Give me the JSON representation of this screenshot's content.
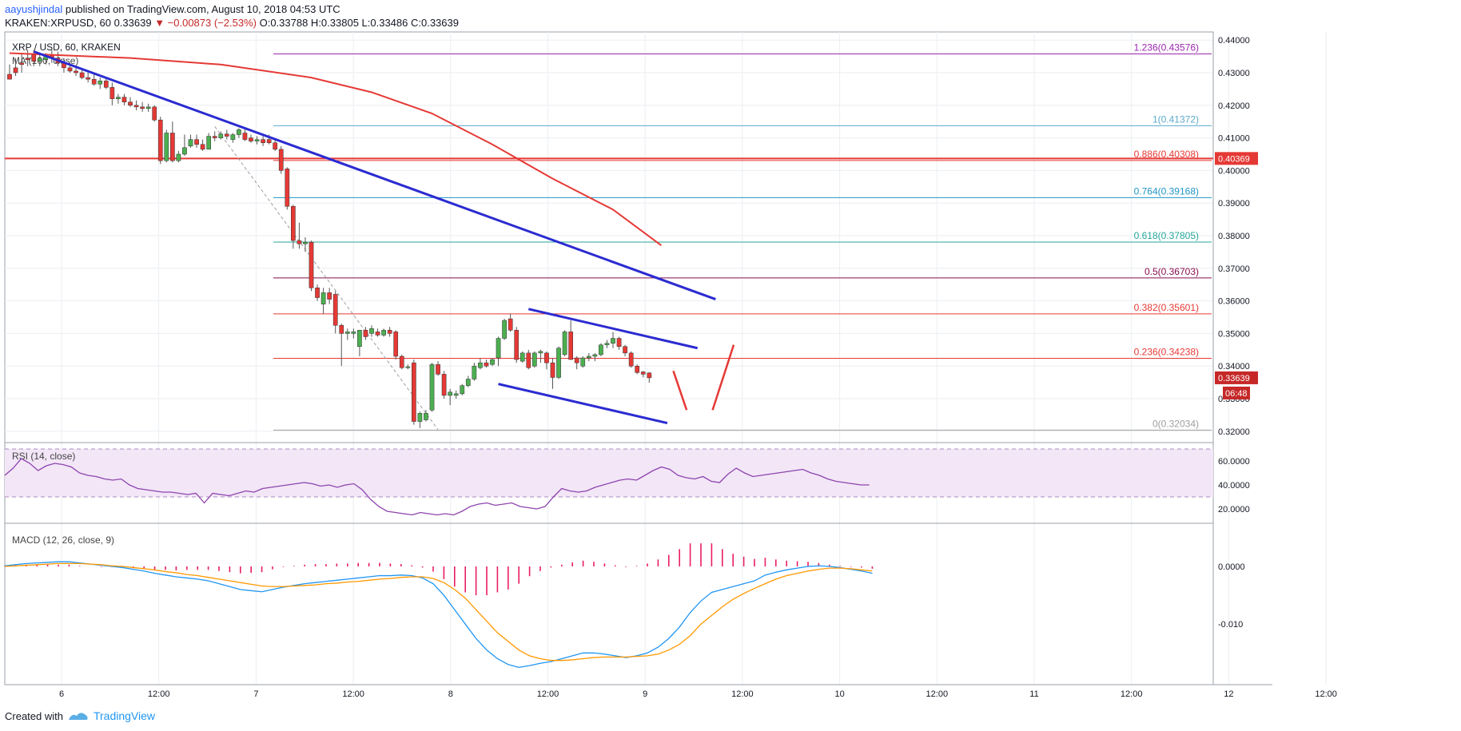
{
  "header": {
    "author": "aayushjindal",
    "published_text": "published on TradingView.com, August 10, 2018 04:53 UTC",
    "symbol": "KRAKEN:XRPUSD, 60",
    "last": "0.33639",
    "change": "▼ −0.00873 (−2.53%)",
    "ohlc": "O:0.33788 H:0.33805 L:0.33486 C:0.33639"
  },
  "legend": {
    "title": "XRP / USD, 60, KRAKEN",
    "ma": "MA (100, close)",
    "rsi": "RSI (14, close)",
    "macd": "MACD (12, 26, close, 9)"
  },
  "footer": {
    "created_with": "Created with",
    "brand": "TradingView"
  },
  "colors": {
    "up": "#4caf50",
    "down": "#e53935",
    "ma": "#e53935",
    "trend": "#2b2bd1",
    "rsi": "#8e44ad",
    "macd": "#2196f3",
    "signal": "#ff9800",
    "hist": "#e91e63"
  },
  "chart_data": [
    {
      "type": "candlestick",
      "title": "XRP / USD, 60, KRAKEN",
      "ylim": [
        0.3175,
        0.4425
      ],
      "y_ticks": [
        "0.44000",
        "0.43000",
        "0.42000",
        "0.41000",
        "0.40000",
        "0.39000",
        "0.38000",
        "0.37000",
        "0.36000",
        "0.35000",
        "0.34000",
        "0.33000",
        "0.32000"
      ],
      "x_ticks": [
        "6",
        "12:00",
        "7",
        "12:00",
        "8",
        "12:00",
        "9",
        "12:00",
        "10",
        "12:00",
        "11",
        "12:00",
        "12",
        "12:00"
      ],
      "price_labels": {
        "horizontal_line": "0.40369",
        "last": "0.33639",
        "countdown": "06:48"
      },
      "fib_levels": [
        {
          "label": "1.236(0.43576)",
          "value": 0.43576,
          "color": "#9c27b0"
        },
        {
          "label": "1(0.41372)",
          "value": 0.41372,
          "color": "#5aaacb"
        },
        {
          "label": "0.886(0.40308)",
          "value": 0.40308,
          "color": "#e53935"
        },
        {
          "label": "0.764(0.39168)",
          "value": 0.39168,
          "color": "#2196c8"
        },
        {
          "label": "0.618(0.37805)",
          "value": 0.37805,
          "color": "#26a69a"
        },
        {
          "label": "0.5(0.36703)",
          "value": 0.36703,
          "color": "#880e4f"
        },
        {
          "label": "0.382(0.35601)",
          "value": 0.35601,
          "color": "#e53935"
        },
        {
          "label": "0.236(0.34238)",
          "value": 0.34238,
          "color": "#e53935"
        },
        {
          "label": "0(0.32034)",
          "value": 0.32034,
          "color": "#9e9e9e"
        }
      ],
      "horizontal_line": 0.40369,
      "candles": [
        [
          0.4295,
          0.4325,
          0.429,
          0.428
        ],
        [
          0.4315,
          0.4345,
          0.429,
          0.43
        ],
        [
          0.433,
          0.436,
          0.43,
          0.4325
        ],
        [
          0.4345,
          0.437,
          0.432,
          0.434
        ],
        [
          0.4355,
          0.437,
          0.432,
          0.4335
        ],
        [
          0.4335,
          0.4355,
          0.432,
          0.4345
        ],
        [
          0.434,
          0.436,
          0.4325,
          0.435
        ],
        [
          0.4355,
          0.437,
          0.433,
          0.4345
        ],
        [
          0.4345,
          0.4365,
          0.432,
          0.433
        ],
        [
          0.433,
          0.4345,
          0.43,
          0.4315
        ],
        [
          0.4315,
          0.433,
          0.43,
          0.4305
        ],
        [
          0.4305,
          0.432,
          0.429,
          0.43
        ],
        [
          0.43,
          0.431,
          0.428,
          0.4285
        ],
        [
          0.4285,
          0.43,
          0.427,
          0.428
        ],
        [
          0.428,
          0.4295,
          0.426,
          0.4265
        ],
        [
          0.4265,
          0.4285,
          0.425,
          0.4275
        ],
        [
          0.4275,
          0.4285,
          0.425,
          0.4255
        ],
        [
          0.4255,
          0.427,
          0.42,
          0.422
        ],
        [
          0.422,
          0.4235,
          0.4205,
          0.4225
        ],
        [
          0.4225,
          0.4235,
          0.42,
          0.421
        ],
        [
          0.421,
          0.4225,
          0.4195,
          0.42
        ],
        [
          0.42,
          0.4215,
          0.4185,
          0.4195
        ],
        [
          0.4195,
          0.421,
          0.418,
          0.419
        ],
        [
          0.419,
          0.4205,
          0.418,
          0.4195
        ],
        [
          0.4195,
          0.42,
          0.415,
          0.4155
        ],
        [
          0.4155,
          0.4165,
          0.402,
          0.403
        ],
        [
          0.403,
          0.4125,
          0.4025,
          0.4115
        ],
        [
          0.4115,
          0.415,
          0.4025,
          0.403
        ],
        [
          0.403,
          0.406,
          0.4025,
          0.405
        ],
        [
          0.405,
          0.411,
          0.4045,
          0.407
        ],
        [
          0.4075,
          0.411,
          0.407,
          0.4095
        ],
        [
          0.4095,
          0.411,
          0.407,
          0.408
        ],
        [
          0.408,
          0.4095,
          0.406,
          0.4065
        ],
        [
          0.4065,
          0.4115,
          0.4065,
          0.4105
        ],
        [
          0.4105,
          0.412,
          0.409,
          0.41
        ],
        [
          0.41,
          0.412,
          0.4095,
          0.4112
        ],
        [
          0.4112,
          0.4125,
          0.4095,
          0.4105
        ],
        [
          0.4095,
          0.4115,
          0.4085,
          0.411
        ],
        [
          0.411,
          0.413,
          0.41,
          0.4125
        ],
        [
          0.4115,
          0.413,
          0.409,
          0.4095
        ],
        [
          0.41,
          0.411,
          0.4085,
          0.409
        ],
        [
          0.409,
          0.4105,
          0.408,
          0.4095
        ],
        [
          0.4095,
          0.4105,
          0.4075,
          0.4085
        ],
        [
          0.4095,
          0.411,
          0.408,
          0.4085
        ],
        [
          0.4085,
          0.4095,
          0.406,
          0.4065
        ],
        [
          0.4065,
          0.4075,
          0.399,
          0.4
        ],
        [
          0.4005,
          0.401,
          0.388,
          0.389
        ],
        [
          0.389,
          0.3895,
          0.376,
          0.3785
        ],
        [
          0.3785,
          0.384,
          0.376,
          0.3775
        ],
        [
          0.3775,
          0.3795,
          0.375,
          0.378
        ],
        [
          0.378,
          0.3785,
          0.363,
          0.364
        ],
        [
          0.364,
          0.365,
          0.36,
          0.361
        ],
        [
          0.359,
          0.364,
          0.356,
          0.3625
        ],
        [
          0.3625,
          0.364,
          0.359,
          0.3605
        ],
        [
          0.362,
          0.363,
          0.35,
          0.3525
        ],
        [
          0.3525,
          0.353,
          0.34,
          0.35
        ],
        [
          0.35,
          0.3515,
          0.348,
          0.3505
        ],
        [
          0.35,
          0.3515,
          0.3485,
          0.3505
        ],
        [
          0.346,
          0.351,
          0.343,
          0.351
        ],
        [
          0.351,
          0.352,
          0.348,
          0.349
        ],
        [
          0.35,
          0.3525,
          0.349,
          0.3515
        ],
        [
          0.3505,
          0.3515,
          0.349,
          0.3495
        ],
        [
          0.3495,
          0.3515,
          0.349,
          0.351
        ],
        [
          0.351,
          0.352,
          0.349,
          0.35
        ],
        [
          0.3505,
          0.351,
          0.342,
          0.343
        ],
        [
          0.343,
          0.3435,
          0.339,
          0.3395
        ],
        [
          0.3395,
          0.3405,
          0.339,
          0.3398
        ],
        [
          0.341,
          0.342,
          0.322,
          0.323
        ],
        [
          0.323,
          0.326,
          0.321,
          0.3255
        ],
        [
          0.3235,
          0.3265,
          0.323,
          0.3255
        ],
        [
          0.3265,
          0.341,
          0.326,
          0.3405
        ],
        [
          0.3405,
          0.3415,
          0.337,
          0.3375
        ],
        [
          0.3375,
          0.3385,
          0.33,
          0.331
        ],
        [
          0.331,
          0.333,
          0.328,
          0.332
        ],
        [
          0.331,
          0.3325,
          0.33,
          0.3315
        ],
        [
          0.3315,
          0.3345,
          0.331,
          0.334
        ],
        [
          0.334,
          0.337,
          0.3335,
          0.336
        ],
        [
          0.336,
          0.341,
          0.3355,
          0.34
        ],
        [
          0.3395,
          0.3425,
          0.339,
          0.341
        ],
        [
          0.341,
          0.342,
          0.3395,
          0.34
        ],
        [
          0.3405,
          0.3425,
          0.34,
          0.342
        ],
        [
          0.3425,
          0.349,
          0.34,
          0.3485
        ],
        [
          0.3485,
          0.3545,
          0.348,
          0.354
        ],
        [
          0.3545,
          0.356,
          0.3505,
          0.351
        ],
        [
          0.351,
          0.352,
          0.341,
          0.342
        ],
        [
          0.3415,
          0.3445,
          0.341,
          0.344
        ],
        [
          0.344,
          0.345,
          0.339,
          0.3395
        ],
        [
          0.34,
          0.3445,
          0.3395,
          0.344
        ],
        [
          0.344,
          0.345,
          0.341,
          0.3445
        ],
        [
          0.344,
          0.3445,
          0.339,
          0.341
        ],
        [
          0.341,
          0.3425,
          0.333,
          0.3365
        ],
        [
          0.3365,
          0.346,
          0.336,
          0.3455
        ],
        [
          0.3435,
          0.351,
          0.343,
          0.3505
        ],
        [
          0.3505,
          0.354,
          0.342,
          0.342
        ],
        [
          0.3425,
          0.343,
          0.339,
          0.341
        ],
        [
          0.34,
          0.343,
          0.3395,
          0.3425
        ],
        [
          0.3425,
          0.344,
          0.3415,
          0.343
        ],
        [
          0.343,
          0.344,
          0.3415,
          0.3435
        ],
        [
          0.3435,
          0.347,
          0.343,
          0.3465
        ],
        [
          0.3465,
          0.348,
          0.3455,
          0.347
        ],
        [
          0.347,
          0.3505,
          0.3455,
          0.3485
        ],
        [
          0.3485,
          0.349,
          0.345,
          0.346
        ],
        [
          0.346,
          0.3465,
          0.343,
          0.344
        ],
        [
          0.344,
          0.3445,
          0.3395,
          0.34
        ],
        [
          0.34,
          0.3405,
          0.3375,
          0.338
        ],
        [
          0.3382,
          0.3385,
          0.3365,
          0.3375
        ],
        [
          0.3379,
          0.3381,
          0.3349,
          0.3364
        ]
      ],
      "ma100": [
        [
          0,
          0.436
        ],
        [
          20,
          0.4345
        ],
        [
          35,
          0.4325
        ],
        [
          50,
          0.4285
        ],
        [
          60,
          0.424
        ],
        [
          70,
          0.4175
        ],
        [
          80,
          0.408
        ],
        [
          90,
          0.3975
        ],
        [
          100,
          0.388
        ],
        [
          108,
          0.377
        ]
      ],
      "trendlines": [
        {
          "from": [
            4,
            0.4365
          ],
          "to": [
            117,
            0.3605
          ],
          "color": "#2b2bd1"
        },
        {
          "from": [
            86,
            0.3575
          ],
          "to": [
            114,
            0.3455
          ],
          "color": "#2b2bd1"
        },
        {
          "from": [
            81,
            0.3345
          ],
          "to": [
            109,
            0.3225
          ],
          "color": "#2b2bd1"
        }
      ],
      "dashed_line": {
        "from": [
          34,
          0.4135
        ],
        "to": [
          71,
          0.3205
        ]
      },
      "arrows": [
        {
          "from": [
            110,
            0.3385
          ],
          "to": [
            112.2,
            0.3265
          ]
        },
        {
          "from": [
            116.5,
            0.3265
          ],
          "to": [
            120,
            0.3465
          ]
        }
      ]
    },
    {
      "type": "line",
      "title": "RSI (14, close)",
      "ylim": [
        10,
        70
      ],
      "y_ticks": [
        "60.0000",
        "40.0000",
        "20.0000"
      ],
      "band": [
        30,
        70
      ],
      "values": [
        48,
        54,
        62,
        58,
        52,
        56,
        58,
        57,
        55,
        50,
        48,
        47,
        45,
        44,
        45,
        40,
        37,
        36,
        35,
        34,
        34,
        33,
        32,
        33,
        25,
        33,
        32,
        31,
        33,
        35,
        34,
        37,
        38,
        39,
        40,
        41,
        42,
        41,
        39,
        40,
        38,
        40,
        41,
        36,
        28,
        22,
        18,
        17,
        16,
        15,
        17,
        16,
        15,
        16,
        15,
        18,
        22,
        24,
        25,
        23,
        24,
        25,
        22,
        21,
        20,
        22,
        30,
        37,
        35,
        34,
        35,
        38,
        40,
        42,
        44,
        45,
        44,
        48,
        52,
        55,
        53,
        48,
        46,
        45,
        47,
        43,
        42,
        49,
        54,
        50,
        47,
        48,
        49,
        50,
        51,
        52,
        53,
        50,
        48,
        45,
        43,
        42,
        41,
        40,
        40
      ]
    },
    {
      "type": "line",
      "title": "MACD (12, 26, close, 9)",
      "ylim": [
        -0.0205,
        0.0072
      ],
      "y_ticks": [
        "0.0000",
        "-0.010"
      ],
      "macd": [
        0.0001,
        0.0003,
        0.0005,
        0.0006,
        0.0007,
        0.0008,
        0.0008,
        0.0006,
        0.0004,
        0.0002,
        0.0,
        -0.0002,
        -0.0005,
        -0.0008,
        -0.0012,
        -0.0015,
        -0.0018,
        -0.002,
        -0.0022,
        -0.0025,
        -0.003,
        -0.0035,
        -0.004,
        -0.0042,
        -0.0044,
        -0.004,
        -0.0036,
        -0.0033,
        -0.003,
        -0.0028,
        -0.0026,
        -0.0024,
        -0.0022,
        -0.002,
        -0.0018,
        -0.0016,
        -0.0016,
        -0.0015,
        -0.0016,
        -0.002,
        -0.003,
        -0.005,
        -0.0075,
        -0.01,
        -0.0125,
        -0.0145,
        -0.016,
        -0.017,
        -0.0175,
        -0.0172,
        -0.0168,
        -0.0165,
        -0.016,
        -0.0155,
        -0.015,
        -0.015,
        -0.0152,
        -0.0155,
        -0.0158,
        -0.0155,
        -0.015,
        -0.014,
        -0.0125,
        -0.0105,
        -0.008,
        -0.006,
        -0.0045,
        -0.004,
        -0.0035,
        -0.003,
        -0.0025,
        -0.0015,
        -0.001,
        -0.0006,
        -0.0003,
        0.0,
        0.0001,
        0.0,
        -0.0002,
        -0.0005,
        -0.0008,
        -0.0012
      ],
      "signal": [
        0.0,
        0.0001,
        0.0002,
        0.0003,
        0.0004,
        0.0005,
        0.0005,
        0.0005,
        0.0004,
        0.0003,
        0.0001,
        0.0,
        -0.0002,
        -0.0004,
        -0.0006,
        -0.0009,
        -0.0011,
        -0.0014,
        -0.0016,
        -0.0019,
        -0.0022,
        -0.0025,
        -0.0028,
        -0.0031,
        -0.0034,
        -0.0035,
        -0.0035,
        -0.0034,
        -0.0033,
        -0.0032,
        -0.003,
        -0.0029,
        -0.0027,
        -0.0026,
        -0.0024,
        -0.0022,
        -0.0021,
        -0.0019,
        -0.0018,
        -0.0018,
        -0.0021,
        -0.0028,
        -0.004,
        -0.0055,
        -0.0075,
        -0.0095,
        -0.0115,
        -0.013,
        -0.0145,
        -0.0155,
        -0.016,
        -0.0163,
        -0.0163,
        -0.0162,
        -0.016,
        -0.0158,
        -0.0157,
        -0.0157,
        -0.0157,
        -0.0156,
        -0.0155,
        -0.0152,
        -0.0145,
        -0.0135,
        -0.012,
        -0.01,
        -0.0085,
        -0.007,
        -0.0057,
        -0.0047,
        -0.0038,
        -0.003,
        -0.0022,
        -0.0016,
        -0.0012,
        -0.0008,
        -0.0005,
        -0.0003,
        -0.0003,
        -0.0004,
        -0.0006,
        -0.0008
      ],
      "histogram": [
        0.0001,
        0.0002,
        0.0003,
        0.0003,
        0.0003,
        0.0003,
        0.0003,
        0.0001,
        0.0,
        -0.0001,
        -0.0001,
        -0.0002,
        -0.0003,
        -0.0004,
        -0.0006,
        -0.0006,
        -0.0007,
        -0.0006,
        -0.0006,
        -0.0006,
        -0.0008,
        -0.001,
        -0.0012,
        -0.0011,
        -0.001,
        -0.0005,
        -0.0001,
        0.0001,
        0.0003,
        0.0004,
        0.0004,
        0.0005,
        0.0005,
        0.0006,
        0.0006,
        0.0006,
        0.0005,
        0.0004,
        0.0002,
        -0.0002,
        -0.0009,
        -0.0022,
        -0.0035,
        -0.0045,
        -0.005,
        -0.005,
        -0.0045,
        -0.004,
        -0.003,
        -0.0017,
        -0.0008,
        -0.0002,
        0.0003,
        0.0007,
        0.001,
        0.0008,
        0.0005,
        0.0002,
        -0.0001,
        0.0001,
        0.0005,
        0.0012,
        0.002,
        0.003,
        0.004,
        0.004,
        0.004,
        0.003,
        0.0022,
        0.0017,
        0.0013,
        0.0015,
        0.0012,
        0.001,
        0.0009,
        0.0008,
        0.0006,
        0.0003,
        0.0001,
        -0.0001,
        -0.0002,
        -0.0004
      ]
    }
  ]
}
